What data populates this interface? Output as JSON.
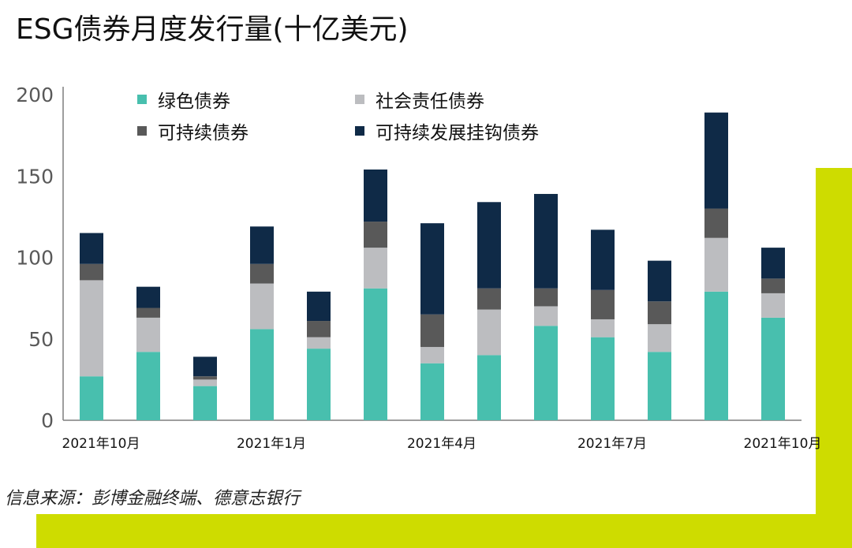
{
  "page": {
    "title": "ESG债券月度发行量(十亿美元)",
    "source": "信息来源：彭博金融终端、德意志银行",
    "accent_color": "#cedc00"
  },
  "chart_data": {
    "type": "bar",
    "stacked": true,
    "title": "ESG债券月度发行量(十亿美元)",
    "xlabel": "",
    "ylabel": "",
    "ylim": [
      0,
      200
    ],
    "yticks": [
      0,
      50,
      100,
      150,
      200
    ],
    "grid": false,
    "legend_position": "top",
    "x_tick_labels": [
      {
        "index": 0,
        "label": "2021年10月"
      },
      {
        "index": 3,
        "label": "2021年1月"
      },
      {
        "index": 6,
        "label": "2021年4月"
      },
      {
        "index": 9,
        "label": "2021年7月"
      },
      {
        "index": 12,
        "label": "2021年10月"
      }
    ],
    "series": [
      {
        "name": "绿色债券",
        "color": "#48bfae",
        "values": [
          27,
          42,
          21,
          56,
          44,
          81,
          35,
          40,
          58,
          51,
          42,
          79,
          63
        ]
      },
      {
        "name": "社会责任债券",
        "color": "#bcbdc0",
        "values": [
          59,
          21,
          4,
          28,
          7,
          25,
          10,
          28,
          12,
          11,
          17,
          33,
          15
        ]
      },
      {
        "name": "可持续债券",
        "color": "#595959",
        "values": [
          10,
          6,
          2,
          12,
          10,
          16,
          20,
          13,
          11,
          18,
          14,
          18,
          9
        ]
      },
      {
        "name": "可持续发展挂钩债券",
        "color": "#0f2a47",
        "values": [
          19,
          13,
          12,
          23,
          18,
          32,
          56,
          53,
          58,
          37,
          25,
          59,
          19
        ]
      }
    ]
  }
}
